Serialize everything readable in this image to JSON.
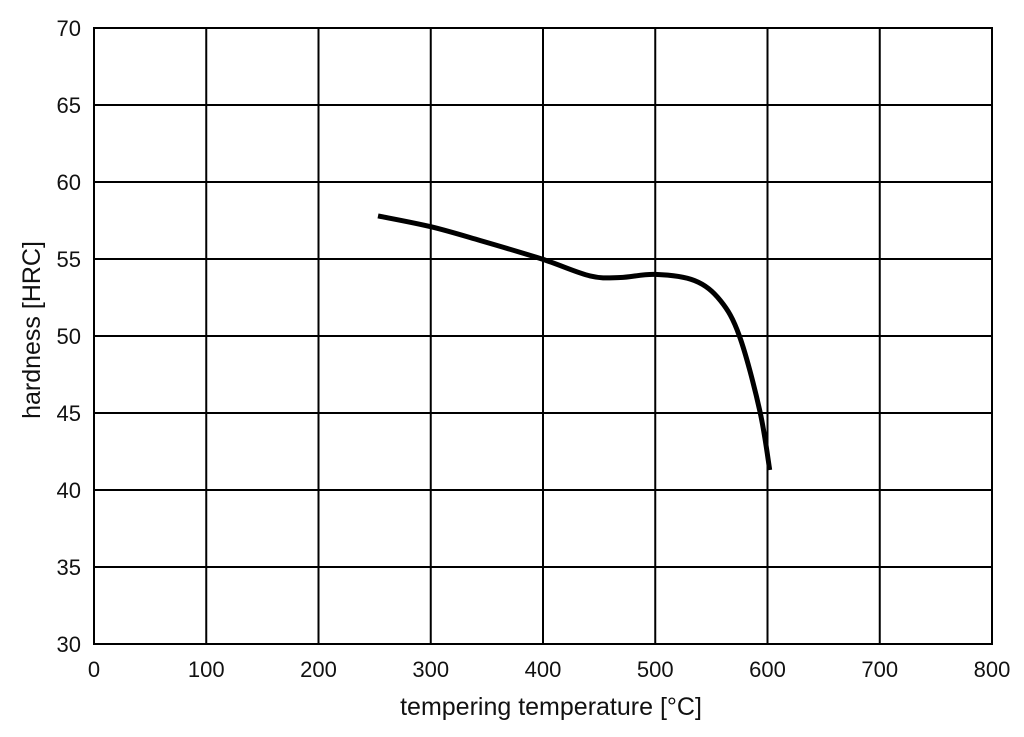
{
  "chart_data": {
    "type": "line",
    "title": "",
    "xlabel": "tempering temperature [°C]",
    "ylabel": "hardness [HRC]",
    "xlim": [
      0,
      800
    ],
    "ylim": [
      30,
      70
    ],
    "xticks": [
      0,
      100,
      200,
      300,
      400,
      500,
      600,
      700,
      800
    ],
    "yticks": [
      30,
      35,
      40,
      45,
      50,
      55,
      60,
      65,
      70
    ],
    "grid": true,
    "legend": null,
    "series": [
      {
        "name": "hardness",
        "color": "#000000",
        "x": [
          253,
          300,
          344,
          399,
          442,
          469,
          500,
          535,
          558,
          575,
          593,
          602
        ],
        "y": [
          57.8,
          57.1,
          56.2,
          55.0,
          53.9,
          53.8,
          54.0,
          53.6,
          52.3,
          50.0,
          45.2,
          41.3
        ]
      }
    ]
  },
  "colors": {
    "background": "#ffffff",
    "grid": "#000000",
    "line": "#000000",
    "text": "#111111"
  }
}
